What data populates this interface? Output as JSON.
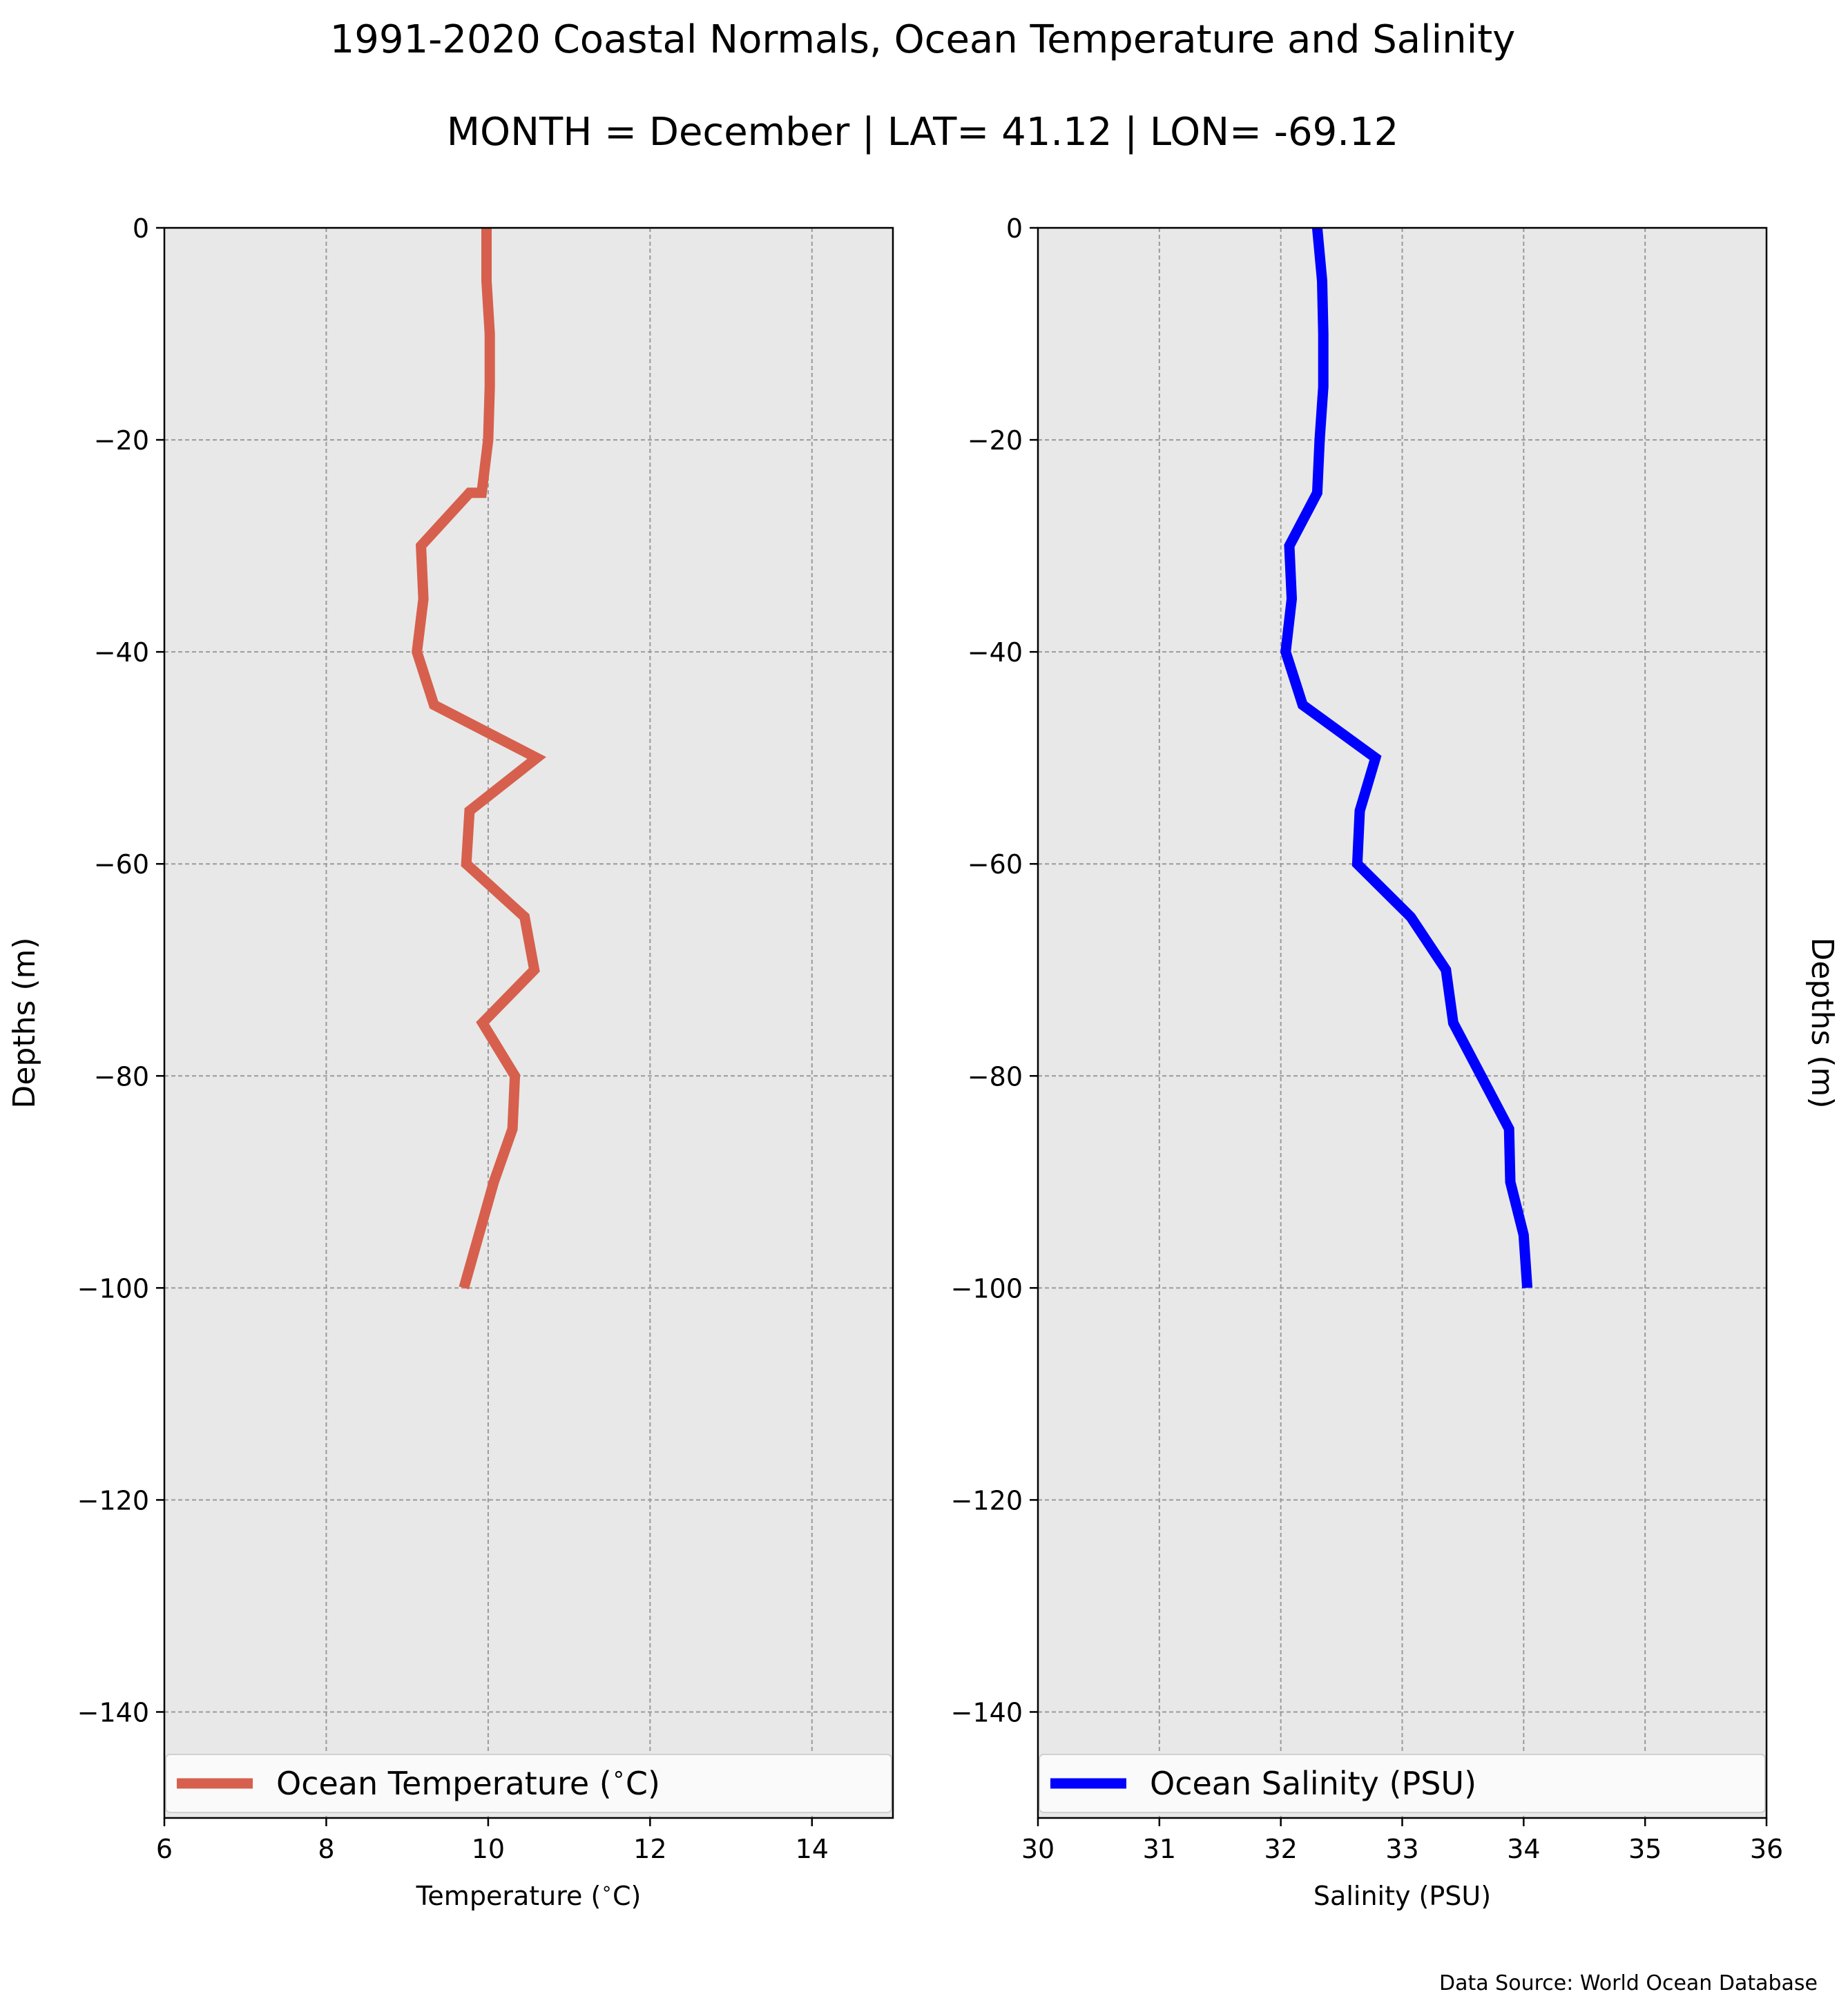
{
  "figure": {
    "title": "1991-2020 Coastal Normals, Ocean Temperature and Salinity",
    "subtitle": "MONTH = December | LAT= 41.12 | LON= -69.12",
    "source_note": "Data Source: World Ocean Database"
  },
  "chart_data": [
    {
      "type": "line",
      "title": "",
      "xlabel": "Temperature ($^\\circ$C)",
      "ylabel": "Depths (m)",
      "xlim": [
        6,
        15
      ],
      "ylim": [
        -150,
        0
      ],
      "xticks": [
        6,
        8,
        10,
        12,
        14
      ],
      "xtick_labels": [
        "6",
        "8",
        "10",
        "12",
        "14"
      ],
      "yticks": [
        0,
        -20,
        -40,
        -60,
        -80,
        -100,
        -120,
        -140
      ],
      "ytick_labels": [
        "0",
        "−20",
        "−40",
        "−60",
        "−80",
        "−100",
        "−120",
        "−140"
      ],
      "grid": true,
      "legend_position": "bottom",
      "background": "#e8e8e8",
      "series": [
        {
          "name": "Ocean Temperature ($^\\circ$C)",
          "color": "#d6604d",
          "x": [
            9.98,
            9.98,
            10.02,
            10.02,
            10.0,
            9.92,
            9.77,
            9.17,
            9.2,
            9.12,
            9.33,
            10.6,
            9.77,
            9.73,
            10.45,
            10.57,
            9.93,
            10.33,
            10.3,
            10.07,
            9.7
          ],
          "y": [
            0,
            -5,
            -10,
            -15,
            -20,
            -25,
            -25,
            -30,
            -35,
            -40,
            -45,
            -50,
            -55,
            -60,
            -65,
            -70,
            -75,
            -80,
            -85,
            -90,
            -100
          ]
        }
      ]
    },
    {
      "type": "line",
      "title": "",
      "xlabel": "Salinity (PSU)",
      "ylabel": "Depths (m)",
      "xlim": [
        30,
        36
      ],
      "ylim": [
        -150,
        0
      ],
      "xticks": [
        30,
        31,
        32,
        33,
        34,
        35,
        36
      ],
      "xtick_labels": [
        "30",
        "31",
        "32",
        "33",
        "34",
        "35",
        "36"
      ],
      "yticks": [
        0,
        -20,
        -40,
        -60,
        -80,
        -100,
        -120,
        -140
      ],
      "ytick_labels": [
        "0",
        "−20",
        "−40",
        "−60",
        "−80",
        "−100",
        "−120",
        "−140"
      ],
      "grid": true,
      "legend_position": "bottom",
      "background": "#e8e8e8",
      "series": [
        {
          "name": "Ocean Salinity (PSU)",
          "color": "#0000ff",
          "x": [
            32.3,
            32.34,
            32.35,
            32.35,
            32.32,
            32.3,
            32.07,
            32.09,
            32.04,
            32.18,
            32.78,
            32.65,
            32.63,
            33.07,
            33.36,
            33.42,
            33.88,
            33.89,
            34.0,
            34.03
          ],
          "y": [
            0,
            -5,
            -10,
            -15,
            -20,
            -25,
            -30,
            -35,
            -40,
            -45,
            -50,
            -55,
            -60,
            -65,
            -70,
            -75,
            -85,
            -90,
            -95,
            -100
          ]
        }
      ]
    }
  ]
}
